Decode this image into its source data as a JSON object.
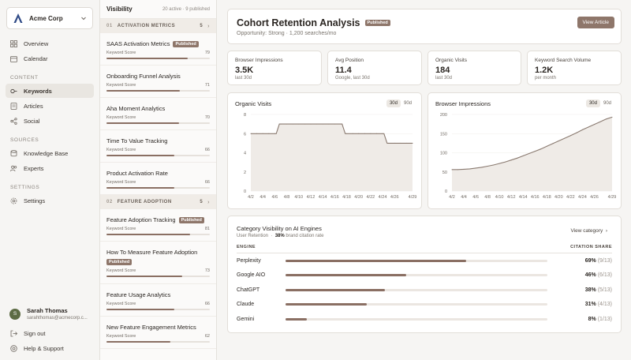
{
  "org": {
    "name": "Acme Corp"
  },
  "nav": {
    "top": [
      {
        "label": "Overview",
        "icon": "grid-icon"
      },
      {
        "label": "Calendar",
        "icon": "calendar-icon"
      }
    ],
    "content_label": "CONTENT",
    "content": [
      {
        "label": "Keywords",
        "icon": "key-icon",
        "active": true
      },
      {
        "label": "Articles",
        "icon": "article-icon"
      },
      {
        "label": "Social",
        "icon": "share-icon"
      }
    ],
    "sources_label": "SOURCES",
    "sources": [
      {
        "label": "Knowledge Base",
        "icon": "database-icon"
      },
      {
        "label": "Experts",
        "icon": "users-icon"
      }
    ],
    "settings_label": "SETTINGS",
    "settings": [
      {
        "label": "Settings",
        "icon": "gear-icon"
      }
    ]
  },
  "user": {
    "initial": "S",
    "name": "Sarah Thomas",
    "email": "sarahthomas@acmecorp.c..."
  },
  "bottom_nav": [
    {
      "label": "Sign out",
      "icon": "sign-out-icon"
    },
    {
      "label": "Help & Support",
      "icon": "help-icon"
    }
  ],
  "visibility": {
    "title": "Visibility",
    "summary": "20 active · 9 published",
    "groups": [
      {
        "num": "01",
        "name": "ACTIVATION METRICS",
        "count": "5",
        "items": [
          {
            "title": "SAAS Activation Metrics",
            "published": true,
            "score_label": "Keyword Score",
            "score": 79
          },
          {
            "title": "Onboarding Funnel Analysis",
            "published": false,
            "score_label": "Keyword Score",
            "score": 71
          },
          {
            "title": "Aha Moment Analytics",
            "published": false,
            "score_label": "Keyword Score",
            "score": 70
          },
          {
            "title": "Time To Value Tracking",
            "published": false,
            "score_label": "Keyword Score",
            "score": 66
          },
          {
            "title": "Product Activation Rate",
            "published": false,
            "score_label": "Keyword Score",
            "score": 66
          }
        ]
      },
      {
        "num": "02",
        "name": "FEATURE ADOPTION",
        "count": "5",
        "items": [
          {
            "title": "Feature Adoption Tracking",
            "published": true,
            "score_label": "Keyword Score",
            "score": 81
          },
          {
            "title": "How To Measure Feature Adoption",
            "published": true,
            "score_label": "Keyword Score",
            "score": 73
          },
          {
            "title": "Feature Usage Analytics",
            "published": false,
            "score_label": "Keyword Score",
            "score": 66
          },
          {
            "title": "New Feature Engagement Metrics",
            "published": false,
            "score_label": "Keyword Score",
            "score": 62
          }
        ]
      }
    ],
    "published_label": "Published"
  },
  "article": {
    "title": "Cohort Retention Analysis",
    "status": "Published",
    "subtitle": "Opportunity: Strong · 1,200 searches/mo",
    "view_button": "View Article"
  },
  "metrics": [
    {
      "label": "Browser Impressions",
      "value": "3.5K",
      "sub": "last 30d"
    },
    {
      "label": "Avg Position",
      "value": "11.4",
      "sub": "Google, last 30d"
    },
    {
      "label": "Organic Visits",
      "value": "184",
      "sub": "last 30d"
    },
    {
      "label": "Keyword Search Volume",
      "value": "1.2K",
      "sub": "per month"
    }
  ],
  "chart_data": [
    {
      "type": "area",
      "title": "Organic Visits",
      "toggle": [
        "30d",
        "90d"
      ],
      "active_toggle": "30d",
      "x": [
        "4/2",
        "4/3",
        "4/4",
        "4/5",
        "4/6",
        "4/7",
        "4/8",
        "4/9",
        "4/10",
        "4/11",
        "4/12",
        "4/13",
        "4/14",
        "4/15",
        "4/16",
        "4/17",
        "4/18",
        "4/19",
        "4/20",
        "4/21",
        "4/22",
        "4/23",
        "4/24",
        "4/25",
        "4/26",
        "4/27",
        "4/28",
        "4/29"
      ],
      "x_tick_labels": [
        "4/2",
        "4/4",
        "4/6",
        "4/8",
        "4/10",
        "4/12",
        "4/14",
        "4/16",
        "4/18",
        "4/20",
        "4/22",
        "4/24",
        "4/26",
        "4/29"
      ],
      "values": [
        6,
        6,
        6,
        6,
        6,
        7,
        7,
        7,
        7,
        7,
        7,
        7,
        7,
        7,
        7,
        7,
        6,
        6,
        6,
        6,
        6,
        6,
        6,
        5,
        5,
        5,
        5,
        5
      ],
      "ylim": [
        0,
        8
      ],
      "yticks": [
        0,
        2,
        4,
        6,
        8
      ]
    },
    {
      "type": "area",
      "title": "Browser Impressions",
      "toggle": [
        "30d",
        "90d"
      ],
      "active_toggle": "30d",
      "x": [
        "4/2",
        "4/3",
        "4/4",
        "4/5",
        "4/6",
        "4/7",
        "4/8",
        "4/9",
        "4/10",
        "4/11",
        "4/12",
        "4/13",
        "4/14",
        "4/15",
        "4/16",
        "4/17",
        "4/18",
        "4/19",
        "4/20",
        "4/21",
        "4/22",
        "4/23",
        "4/24",
        "4/25",
        "4/26",
        "4/27",
        "4/28",
        "4/29"
      ],
      "x_tick_labels": [
        "4/2",
        "4/4",
        "4/6",
        "4/8",
        "4/10",
        "4/12",
        "4/14",
        "4/16",
        "4/18",
        "4/20",
        "4/22",
        "4/24",
        "4/26",
        "4/29"
      ],
      "values": [
        56,
        56,
        57,
        58,
        60,
        62,
        65,
        68,
        72,
        76,
        81,
        86,
        92,
        98,
        104,
        110,
        117,
        124,
        131,
        138,
        145,
        152,
        160,
        167,
        174,
        181,
        188,
        193
      ],
      "ylim": [
        0,
        200
      ],
      "yticks": [
        0,
        50,
        100,
        150,
        200
      ]
    }
  ],
  "category": {
    "title": "Category Visibility on AI Engines",
    "subtitle_prefix": "User Retention",
    "subtitle_rate": "38%",
    "subtitle_suffix": "brand citation rate",
    "view_link": "View category",
    "col_engine": "ENGINE",
    "col_share": "CITATION SHARE",
    "engines": [
      {
        "name": "Perplexity",
        "pct": "69%",
        "frac": "(9/13)",
        "value": 0.69
      },
      {
        "name": "Google AIO",
        "pct": "46%",
        "frac": "(6/13)",
        "value": 0.46
      },
      {
        "name": "ChatGPT",
        "pct": "38%",
        "frac": "(5/13)",
        "value": 0.38
      },
      {
        "name": "Claude",
        "pct": "31%",
        "frac": "(4/13)",
        "value": 0.31
      },
      {
        "name": "Gemini",
        "pct": "8%",
        "frac": "(1/13)",
        "value": 0.08
      }
    ]
  }
}
